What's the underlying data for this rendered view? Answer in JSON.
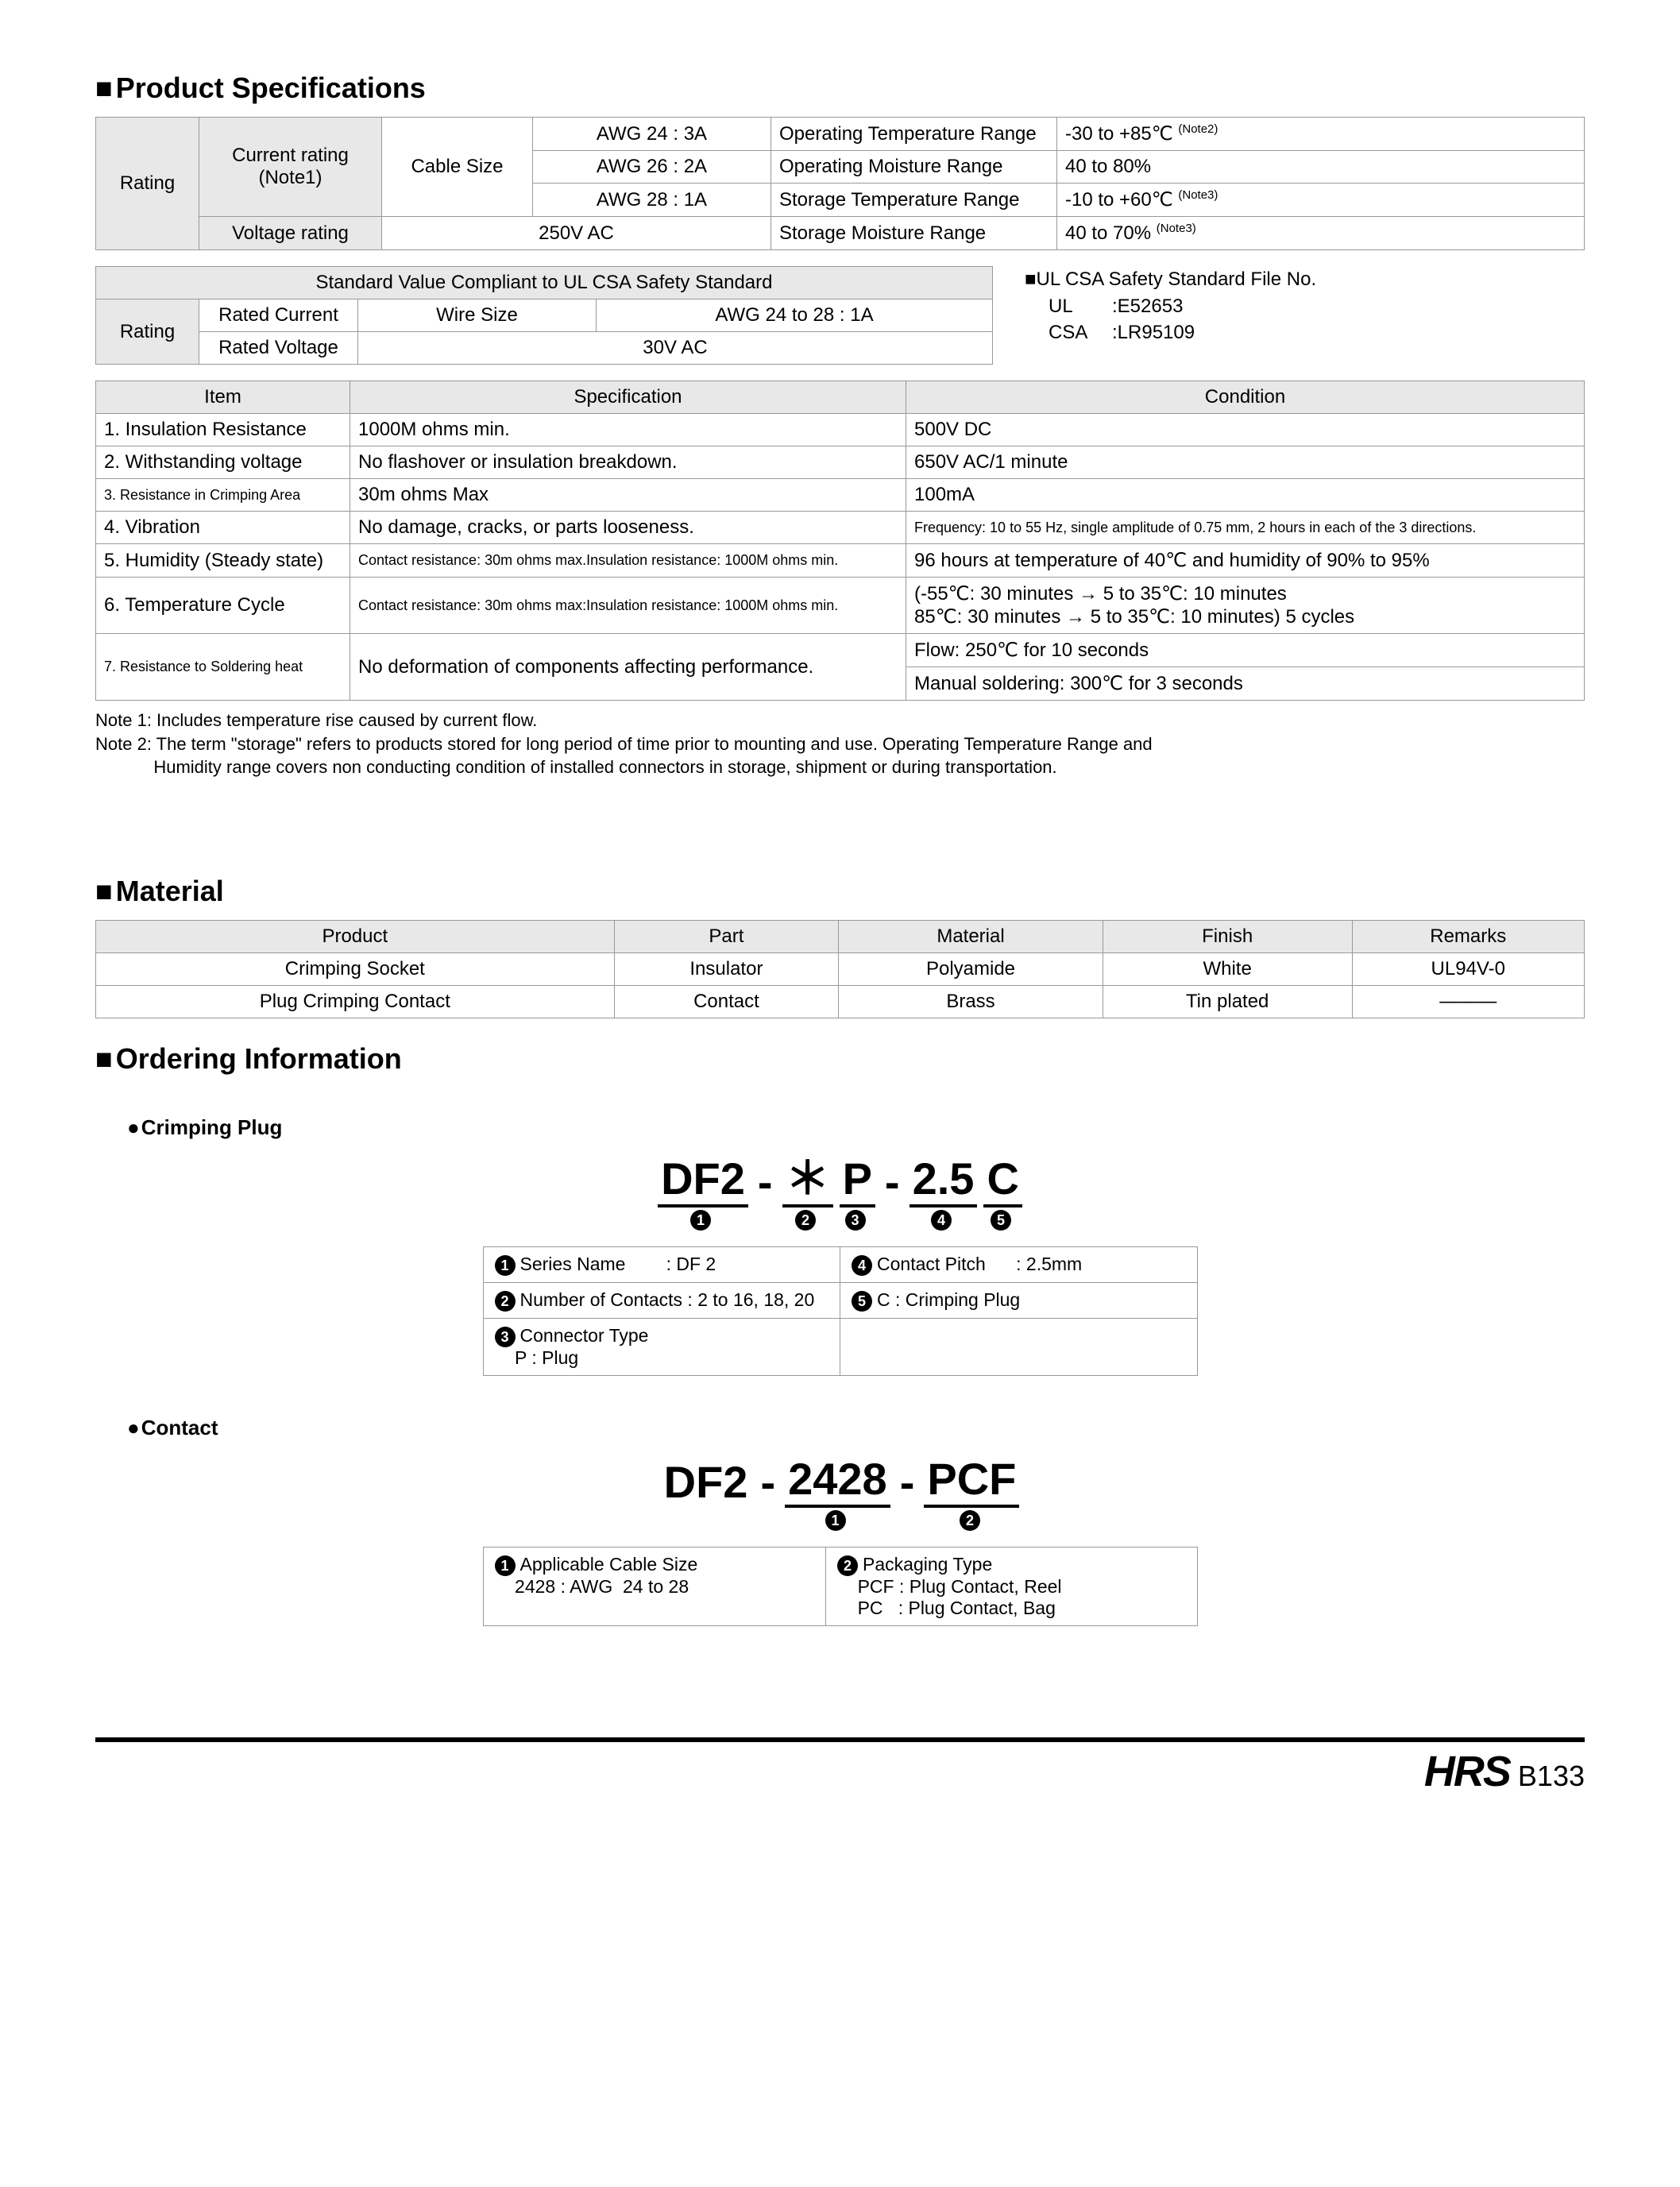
{
  "sections": {
    "spec_title": "Product Specifications",
    "material_title": "Material",
    "ordering_title": "Ordering Information",
    "crimping_plug_title": "Crimping Plug",
    "contact_title": "Contact"
  },
  "rating": {
    "label": "Rating",
    "current_rating_label": "Current rating\n(Note1)",
    "cable_size_label": "Cable Size",
    "awg24": "AWG  24 : 3A",
    "awg26": "AWG  26 : 2A",
    "awg28": "AWG  28 : 1A",
    "voltage_rating_label": "Voltage rating",
    "voltage_rating_value": "250V AC",
    "op_temp_label": "Operating Temperature Range",
    "op_temp_value": "-30 to +85℃",
    "op_temp_note": "(Note2)",
    "op_moist_label": "Operating Moisture Range",
    "op_moist_value": "40 to 80%",
    "st_temp_label": "Storage Temperature Range",
    "st_temp_value": "-10 to +60℃",
    "st_temp_note": "(Note3)",
    "st_moist_label": "Storage Moisture Range",
    "st_moist_value": "40 to 70%",
    "st_moist_note": "(Note3)"
  },
  "ulcsa": {
    "std_header": "Standard Value Compliant to UL CSA Safety Standard",
    "rating_label": "Rating",
    "rated_current_label": "Rated Current",
    "wire_size_label": "Wire Size",
    "wire_size_value": "AWG  24 to 28 : 1A",
    "rated_voltage_label": "Rated Voltage",
    "rated_voltage_value": "30V AC",
    "file_title": "UL CSA Safety Standard File No.",
    "ul_label": "UL",
    "ul_value": ":E52653",
    "csa_label": "CSA",
    "csa_value": ":LR95109"
  },
  "spec_table": {
    "headers": [
      "Item",
      "Specification",
      "Condition"
    ],
    "rows": [
      {
        "item": "1. Insulation Resistance",
        "spec": "1000M ohms min.",
        "cond": "500V DC"
      },
      {
        "item": "2. Withstanding voltage",
        "spec": "No flashover or insulation breakdown.",
        "cond": "650V AC/1 minute"
      },
      {
        "item": "3. Resistance in Crimping Area",
        "spec": "30m ohms Max",
        "cond": "100mA",
        "item_small": true
      },
      {
        "item": "4. Vibration",
        "spec": "No damage, cracks, or parts looseness.",
        "cond": "Frequency: 10 to 55 Hz, single amplitude of 0.75 mm, 2 hours in each of the 3 directions.",
        "cond_small": true
      },
      {
        "item": "5. Humidity (Steady state)",
        "spec": "Contact resistance: 30m ohms max.Insulation resistance: 1000M ohms min.",
        "cond": "96 hours at temperature of 40℃ and humidity of 90% to 95%",
        "spec_small": true
      },
      {
        "item": "6. Temperature Cycle",
        "spec": "Contact resistance: 30m ohms max:Insulation resistance: 1000M ohms min.",
        "cond": "(-55℃: 30 minutes → 5 to 35℃: 10 minutes\n  85℃: 30 minutes → 5 to 35℃: 10 minutes) 5 cycles",
        "spec_small": true,
        "cond_multi": true
      },
      {
        "item": "7. Resistance to Soldering heat",
        "spec": "No deformation of components affecting performance.",
        "cond_rows": [
          "Flow: 250℃ for 10 seconds",
          "Manual soldering: 300℃ for 3 seconds"
        ],
        "item_small": true
      }
    ]
  },
  "notes": {
    "n1": "Note 1: Includes temperature rise caused by current flow.",
    "n2": "Note 2: The term \"storage\" refers to products stored for long period of time prior to mounting and use. Operating Temperature Range and\n            Humidity range covers non conducting condition of installed connectors in storage, shipment or during transportation."
  },
  "material": {
    "headers": [
      "Product",
      "Part",
      "Material",
      "Finish",
      "Remarks"
    ],
    "rows": [
      [
        "Crimping Socket",
        "Insulator",
        "Polyamide",
        "White",
        "UL94V-0"
      ],
      [
        "Plug Crimping Contact",
        "Contact",
        "Brass",
        "Tin plated",
        "———"
      ]
    ]
  },
  "ordering_plug": {
    "segments": [
      "DF2",
      "-",
      "＊",
      "P",
      "-",
      "2.5",
      "C"
    ],
    "seg_underline": [
      true,
      false,
      true,
      true,
      false,
      true,
      true
    ],
    "seg_idx": [
      "1",
      "",
      "2",
      "3",
      "",
      "4",
      "5"
    ],
    "legend": [
      {
        "n": "1",
        "k": "Series Name",
        "v": ": DF 2"
      },
      {
        "n": "2",
        "k": "Number of Contacts",
        "v": ": 2 to 16, 18, 20"
      },
      {
        "n": "3",
        "k": "Connector Type",
        "v": "",
        "extra": "    P : Plug"
      },
      {
        "n": "4",
        "k": "Contact Pitch",
        "v": ": 2.5mm"
      },
      {
        "n": "5",
        "k": "C : Crimping Plug",
        "v": ""
      }
    ]
  },
  "ordering_contact": {
    "segments": [
      "DF2",
      "-",
      "2428",
      "-",
      "PCF"
    ],
    "seg_underline": [
      false,
      false,
      true,
      false,
      true
    ],
    "seg_idx": [
      "",
      "",
      "1",
      "",
      "2"
    ],
    "legend_left_head": "Applicable Cable Size",
    "legend_left_body": "    2428 : AWG  24 to 28",
    "legend_right_head": "Packaging Type",
    "legend_right_body1": "    PCF : Plug Contact, Reel",
    "legend_right_body2": "    PC   : Plug Contact, Bag"
  },
  "footer": {
    "logo": "HRS",
    "page": "B133"
  },
  "colors": {
    "header_bg": "#e8e8e8",
    "border": "#999999"
  }
}
